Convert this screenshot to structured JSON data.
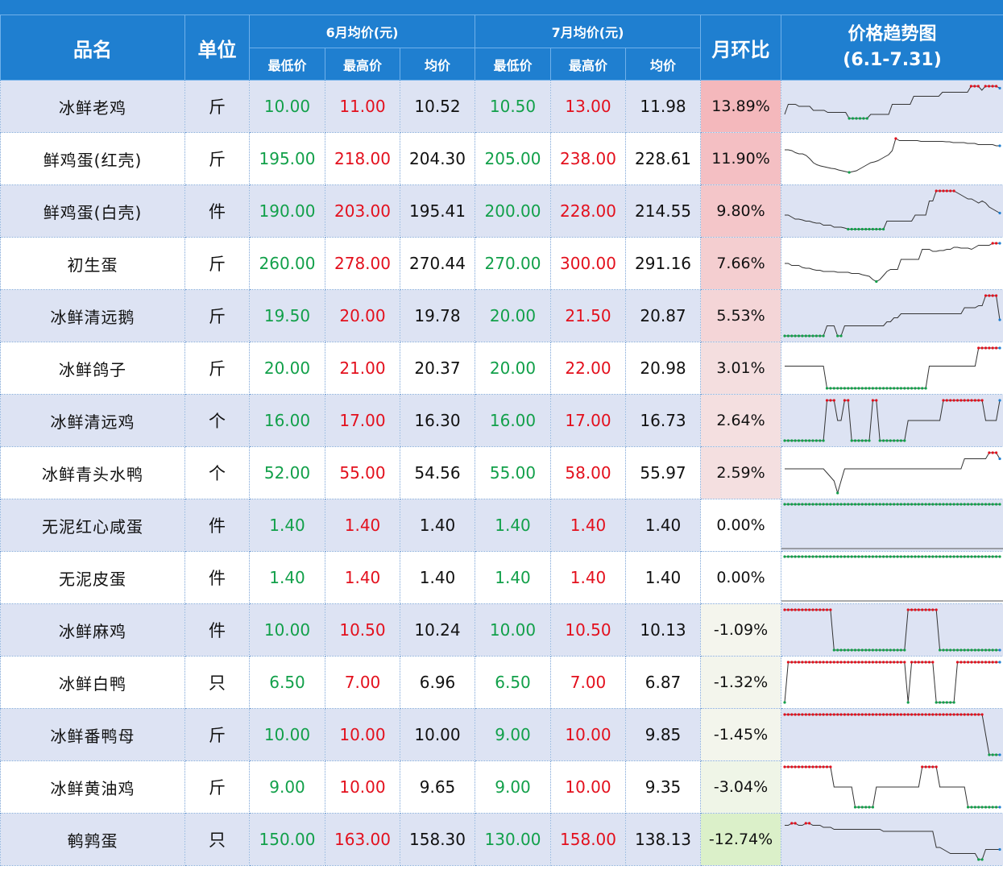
{
  "header": {
    "title": "",
    "col_name": "品名",
    "col_unit": "单位",
    "june_group": "6月均价(元)",
    "july_group": "7月均价(元)",
    "sub_low": "最低价",
    "sub_high": "最高价",
    "sub_avg": "均价",
    "col_change": "月环比",
    "col_trend_line1": "价格趋势图",
    "col_trend_line2": "(6.1-7.31)"
  },
  "colors": {
    "header_bg": "#1f7fd0",
    "low_price": "#12a04a",
    "high_price": "#e3101d",
    "spark_line": "#333333",
    "spark_marker_high": "#e3101d",
    "spark_marker_low": "#12a04a",
    "spark_marker_last": "#1f7fd0"
  },
  "rows": [
    {
      "name": "冰鲜老鸡",
      "unit": "斤",
      "jun_low": "10.00",
      "jun_high": "11.00",
      "jun_avg": "10.52",
      "jul_low": "10.50",
      "jul_high": "13.00",
      "jul_avg": "11.98",
      "change": "13.89%",
      "change_value": 13.89,
      "trend": [
        0.3,
        0.55,
        0.55,
        0.55,
        0.5,
        0.5,
        0.5,
        0.5,
        0.4,
        0.4,
        0.4,
        0.4,
        0.35,
        0.35,
        0.35,
        0.35,
        0.35,
        0.35,
        0.2,
        0.2,
        0.2,
        0.2,
        0.2,
        0.2,
        0.3,
        0.3,
        0.3,
        0.3,
        0.3,
        0.3,
        0.55,
        0.55,
        0.55,
        0.55,
        0.55,
        0.55,
        0.75,
        0.75,
        0.75,
        0.75,
        0.75,
        0.75,
        0.75,
        0.75,
        0.85,
        0.85,
        0.85,
        0.85,
        0.85,
        0.85,
        0.85,
        0.85,
        1.0,
        1.0,
        1.0,
        0.9,
        1.0,
        1.0,
        1.0,
        1.0,
        0.95
      ]
    },
    {
      "name": "鲜鸡蛋(红壳)",
      "unit": "斤",
      "jun_low": "195.00",
      "jun_high": "218.00",
      "jun_avg": "204.30",
      "jul_low": "205.00",
      "jul_high": "238.00",
      "jul_avg": "228.61",
      "change": "11.90%",
      "change_value": 11.9,
      "trend": [
        0.72,
        0.72,
        0.7,
        0.65,
        0.62,
        0.62,
        0.58,
        0.5,
        0.4,
        0.35,
        0.32,
        0.3,
        0.28,
        0.26,
        0.25,
        0.22,
        0.2,
        0.18,
        0.16,
        0.18,
        0.2,
        0.25,
        0.3,
        0.35,
        0.4,
        0.42,
        0.45,
        0.5,
        0.55,
        0.6,
        0.7,
        1.0,
        0.95,
        0.95,
        0.95,
        0.95,
        0.95,
        0.95,
        0.93,
        0.93,
        0.93,
        0.93,
        0.93,
        0.93,
        0.93,
        0.92,
        0.92,
        0.9,
        0.9,
        0.9,
        0.9,
        0.88,
        0.88,
        0.88,
        0.85,
        0.85,
        0.85,
        0.85,
        0.85,
        0.82,
        0.82
      ]
    },
    {
      "name": "鲜鸡蛋(白壳)",
      "unit": "件",
      "jun_low": "190.00",
      "jun_high": "203.00",
      "jun_avg": "195.41",
      "jul_low": "200.00",
      "jul_high": "228.00",
      "jul_avg": "214.55",
      "change": "9.80%",
      "change_value": 9.8,
      "trend": [
        0.4,
        0.4,
        0.35,
        0.3,
        0.3,
        0.28,
        0.25,
        0.25,
        0.22,
        0.2,
        0.2,
        0.15,
        0.15,
        0.15,
        0.1,
        0.1,
        0.1,
        0.08,
        0.05,
        0.05,
        0.05,
        0.05,
        0.05,
        0.05,
        0.05,
        0.05,
        0.05,
        0.05,
        0.05,
        0.25,
        0.25,
        0.25,
        0.25,
        0.25,
        0.25,
        0.25,
        0.25,
        0.4,
        0.4,
        0.4,
        0.4,
        0.75,
        0.75,
        1.0,
        1.0,
        1.0,
        1.0,
        1.0,
        1.0,
        0.95,
        0.9,
        0.85,
        0.8,
        0.8,
        0.75,
        0.7,
        0.75,
        0.7,
        0.6,
        0.55,
        0.5,
        0.45
      ]
    },
    {
      "name": "初生蛋",
      "unit": "斤",
      "jun_low": "260.00",
      "jun_high": "278.00",
      "jun_avg": "270.44",
      "jul_low": "270.00",
      "jul_high": "300.00",
      "jul_avg": "291.16",
      "change": "7.66%",
      "change_value": 7.66,
      "trend": [
        0.5,
        0.5,
        0.45,
        0.45,
        0.45,
        0.4,
        0.38,
        0.38,
        0.35,
        0.33,
        0.33,
        0.3,
        0.3,
        0.3,
        0.3,
        0.28,
        0.28,
        0.28,
        0.28,
        0.25,
        0.25,
        0.25,
        0.22,
        0.2,
        0.18,
        0.1,
        0.05,
        0.1,
        0.2,
        0.3,
        0.35,
        0.35,
        0.35,
        0.6,
        0.6,
        0.6,
        0.6,
        0.6,
        0.6,
        0.85,
        0.85,
        0.85,
        0.8,
        0.8,
        0.82,
        0.82,
        0.85,
        0.85,
        0.9,
        0.9,
        0.88,
        0.88,
        0.88,
        0.85,
        0.9,
        0.95,
        0.95,
        0.95,
        0.95,
        1.0,
        1.0,
        1.0
      ]
    },
    {
      "name": "冰鲜清远鹅",
      "unit": "斤",
      "jun_low": "19.50",
      "jun_high": "20.00",
      "jun_avg": "19.78",
      "jul_low": "20.00",
      "jul_high": "21.50",
      "jul_avg": "20.87",
      "change": "5.53%",
      "change_value": 5.53,
      "trend": [
        0.0,
        0.0,
        0.0,
        0.0,
        0.0,
        0.0,
        0.0,
        0.0,
        0.0,
        0.0,
        0.0,
        0.0,
        0.25,
        0.25,
        0.25,
        0.0,
        0.0,
        0.25,
        0.25,
        0.25,
        0.25,
        0.25,
        0.25,
        0.25,
        0.25,
        0.25,
        0.25,
        0.25,
        0.25,
        0.35,
        0.35,
        0.45,
        0.45,
        0.55,
        0.55,
        0.55,
        0.55,
        0.55,
        0.55,
        0.55,
        0.55,
        0.55,
        0.55,
        0.55,
        0.55,
        0.55,
        0.55,
        0.55,
        0.55,
        0.55,
        0.55,
        0.7,
        0.7,
        0.7,
        0.7,
        0.75,
        0.75,
        1.0,
        1.0,
        1.0,
        1.0,
        0.4
      ]
    },
    {
      "name": "冰鲜鸽子",
      "unit": "斤",
      "jun_low": "20.00",
      "jun_high": "21.00",
      "jun_avg": "20.37",
      "jul_low": "20.00",
      "jul_high": "22.00",
      "jul_avg": "20.98",
      "change": "3.01%",
      "change_value": 3.01,
      "trend": [
        0.55,
        0.55,
        0.55,
        0.55,
        0.55,
        0.55,
        0.55,
        0.55,
        0.55,
        0.55,
        0.55,
        0.55,
        0.0,
        0.0,
        0.0,
        0.0,
        0.0,
        0.0,
        0.0,
        0.0,
        0.0,
        0.0,
        0.0,
        0.0,
        0.0,
        0.0,
        0.0,
        0.0,
        0.0,
        0.0,
        0.0,
        0.0,
        0.0,
        0.0,
        0.0,
        0.0,
        0.0,
        0.0,
        0.0,
        0.0,
        0.0,
        0.55,
        0.55,
        0.55,
        0.55,
        0.55,
        0.55,
        0.55,
        0.55,
        0.55,
        0.55,
        0.55,
        0.55,
        0.55,
        0.55,
        1.0,
        1.0,
        1.0,
        1.0,
        1.0,
        1.0,
        1.0
      ]
    },
    {
      "name": "冰鲜清远鸡",
      "unit": "个",
      "jun_low": "16.00",
      "jun_high": "17.00",
      "jun_avg": "16.30",
      "jul_low": "16.00",
      "jul_high": "17.00",
      "jul_avg": "16.73",
      "change": "2.64%",
      "change_value": 2.64,
      "trend": [
        0.0,
        0.0,
        0.0,
        0.0,
        0.0,
        0.0,
        0.0,
        0.0,
        0.0,
        0.0,
        0.0,
        0.0,
        1.0,
        1.0,
        1.0,
        0.5,
        0.5,
        1.0,
        1.0,
        0.0,
        0.0,
        0.0,
        0.0,
        0.0,
        0.0,
        1.0,
        1.0,
        0.0,
        0.0,
        0.0,
        0.0,
        0.0,
        0.0,
        0.0,
        0.0,
        0.5,
        0.5,
        0.5,
        0.5,
        0.5,
        0.5,
        0.5,
        0.5,
        0.5,
        0.5,
        1.0,
        1.0,
        1.0,
        1.0,
        1.0,
        1.0,
        1.0,
        1.0,
        1.0,
        1.0,
        1.0,
        1.0,
        0.5,
        0.5,
        0.5,
        0.5,
        1.0
      ]
    },
    {
      "name": "冰鲜青头水鸭",
      "unit": "个",
      "jun_low": "52.00",
      "jun_high": "55.00",
      "jun_avg": "54.56",
      "jul_low": "55.00",
      "jul_high": "58.00",
      "jul_avg": "55.97",
      "change": "2.59%",
      "change_value": 2.59,
      "trend": [
        0.6,
        0.6,
        0.6,
        0.6,
        0.6,
        0.6,
        0.6,
        0.6,
        0.6,
        0.6,
        0.6,
        0.6,
        0.5,
        0.4,
        0.3,
        0.0,
        0.3,
        0.6,
        0.6,
        0.6,
        0.6,
        0.6,
        0.6,
        0.6,
        0.6,
        0.6,
        0.6,
        0.6,
        0.6,
        0.6,
        0.6,
        0.6,
        0.6,
        0.6,
        0.6,
        0.6,
        0.6,
        0.6,
        0.6,
        0.6,
        0.6,
        0.6,
        0.6,
        0.6,
        0.6,
        0.6,
        0.6,
        0.6,
        0.6,
        0.6,
        0.6,
        0.85,
        0.85,
        0.85,
        0.85,
        0.85,
        0.85,
        0.85,
        1.0,
        1.0,
        1.0,
        0.85
      ]
    },
    {
      "name": "无泥红心咸蛋",
      "unit": "件",
      "jun_low": "1.40",
      "jun_high": "1.40",
      "jun_avg": "1.40",
      "jul_low": "1.40",
      "jul_high": "1.40",
      "jul_avg": "1.40",
      "change": "0.00%",
      "change_value": 0.0,
      "trend": [
        0.5,
        0.5,
        0.5,
        0.5,
        0.5,
        0.5,
        0.5,
        0.5,
        0.5,
        0.5,
        0.5,
        0.5,
        0.5,
        0.5,
        0.5,
        0.5,
        0.5,
        0.5,
        0.5,
        0.5,
        0.5,
        0.5,
        0.5,
        0.5,
        0.5,
        0.5,
        0.5,
        0.5,
        0.5,
        0.5,
        0.5,
        0.5,
        0.5,
        0.5,
        0.5,
        0.5,
        0.5,
        0.5,
        0.5,
        0.5,
        0.5,
        0.5,
        0.5,
        0.5,
        0.5,
        0.5,
        0.5,
        0.5,
        0.5,
        0.5,
        0.5,
        0.5,
        0.5,
        0.5,
        0.5,
        0.5,
        0.5,
        0.5,
        0.5,
        0.5,
        0.5,
        0.5
      ]
    },
    {
      "name": "无泥皮蛋",
      "unit": "件",
      "jun_low": "1.40",
      "jun_high": "1.40",
      "jun_avg": "1.40",
      "jul_low": "1.40",
      "jul_high": "1.40",
      "jul_avg": "1.40",
      "change": "0.00%",
      "change_value": 0.0,
      "trend": [
        0.5,
        0.5,
        0.5,
        0.5,
        0.5,
        0.5,
        0.5,
        0.5,
        0.5,
        0.5,
        0.5,
        0.5,
        0.5,
        0.5,
        0.5,
        0.5,
        0.5,
        0.5,
        0.5,
        0.5,
        0.5,
        0.5,
        0.5,
        0.5,
        0.5,
        0.5,
        0.5,
        0.5,
        0.5,
        0.5,
        0.5,
        0.5,
        0.5,
        0.5,
        0.5,
        0.5,
        0.5,
        0.5,
        0.5,
        0.5,
        0.5,
        0.5,
        0.5,
        0.5,
        0.5,
        0.5,
        0.5,
        0.5,
        0.5,
        0.5,
        0.5,
        0.5,
        0.5,
        0.5,
        0.5,
        0.5,
        0.5,
        0.5,
        0.5,
        0.5,
        0.5,
        0.5
      ]
    },
    {
      "name": "冰鲜麻鸡",
      "unit": "件",
      "jun_low": "10.00",
      "jun_high": "10.50",
      "jun_avg": "10.24",
      "jul_low": "10.00",
      "jul_high": "10.50",
      "jul_avg": "10.13",
      "change": "-1.09%",
      "change_value": -1.09,
      "trend": [
        1.0,
        1.0,
        1.0,
        1.0,
        1.0,
        1.0,
        1.0,
        1.0,
        1.0,
        1.0,
        1.0,
        1.0,
        1.0,
        1.0,
        0.0,
        0.0,
        0.0,
        0.0,
        0.0,
        0.0,
        0.0,
        0.0,
        0.0,
        0.0,
        0.0,
        0.0,
        0.0,
        0.0,
        0.0,
        0.0,
        0.0,
        0.0,
        0.0,
        0.0,
        0.0,
        1.0,
        1.0,
        1.0,
        1.0,
        1.0,
        1.0,
        1.0,
        1.0,
        1.0,
        0.0,
        0.0,
        0.0,
        0.0,
        0.0,
        0.0,
        0.0,
        0.0,
        0.0,
        0.0,
        0.0,
        0.0,
        0.0,
        0.0,
        0.0,
        0.0,
        0.0,
        0.0
      ]
    },
    {
      "name": "冰鲜白鸭",
      "unit": "只",
      "jun_low": "6.50",
      "jun_high": "7.00",
      "jun_avg": "6.96",
      "jul_low": "6.50",
      "jul_high": "7.00",
      "jul_avg": "6.87",
      "change": "-1.32%",
      "change_value": -1.32,
      "trend": [
        0.0,
        1.0,
        1.0,
        1.0,
        1.0,
        1.0,
        1.0,
        1.0,
        1.0,
        1.0,
        1.0,
        1.0,
        1.0,
        1.0,
        1.0,
        1.0,
        1.0,
        1.0,
        1.0,
        1.0,
        1.0,
        1.0,
        1.0,
        1.0,
        1.0,
        1.0,
        1.0,
        1.0,
        1.0,
        1.0,
        1.0,
        1.0,
        1.0,
        1.0,
        1.0,
        0.0,
        1.0,
        1.0,
        1.0,
        1.0,
        1.0,
        1.0,
        1.0,
        0.0,
        0.0,
        0.0,
        0.0,
        0.0,
        0.0,
        1.0,
        1.0,
        1.0,
        1.0,
        1.0,
        1.0,
        1.0,
        1.0,
        1.0,
        1.0,
        1.0,
        1.0,
        1.0
      ]
    },
    {
      "name": "冰鲜番鸭母",
      "unit": "斤",
      "jun_low": "10.00",
      "jun_high": "10.00",
      "jun_avg": "10.00",
      "jul_low": "9.00",
      "jul_high": "10.00",
      "jul_avg": "9.85",
      "change": "-1.45%",
      "change_value": -1.45,
      "trend": [
        1.0,
        1.0,
        1.0,
        1.0,
        1.0,
        1.0,
        1.0,
        1.0,
        1.0,
        1.0,
        1.0,
        1.0,
        1.0,
        1.0,
        1.0,
        1.0,
        1.0,
        1.0,
        1.0,
        1.0,
        1.0,
        1.0,
        1.0,
        1.0,
        1.0,
        1.0,
        1.0,
        1.0,
        1.0,
        1.0,
        1.0,
        1.0,
        1.0,
        1.0,
        1.0,
        1.0,
        1.0,
        1.0,
        1.0,
        1.0,
        1.0,
        1.0,
        1.0,
        1.0,
        1.0,
        1.0,
        1.0,
        1.0,
        1.0,
        1.0,
        1.0,
        1.0,
        1.0,
        1.0,
        1.0,
        1.0,
        1.0,
        0.5,
        0.0,
        0.0,
        0.0,
        0.0
      ]
    },
    {
      "name": "冰鲜黄油鸡",
      "unit": "斤",
      "jun_low": "9.00",
      "jun_high": "10.00",
      "jun_avg": "9.65",
      "jul_low": "9.00",
      "jul_high": "10.00",
      "jul_avg": "9.35",
      "change": "-3.04%",
      "change_value": -3.04,
      "trend": [
        1.0,
        1.0,
        1.0,
        1.0,
        1.0,
        1.0,
        1.0,
        1.0,
        1.0,
        1.0,
        1.0,
        1.0,
        1.0,
        1.0,
        0.5,
        0.5,
        0.5,
        0.5,
        0.5,
        0.5,
        0.0,
        0.0,
        0.0,
        0.0,
        0.0,
        0.0,
        0.5,
        0.5,
        0.5,
        0.5,
        0.5,
        0.5,
        0.5,
        0.5,
        0.5,
        0.5,
        0.5,
        0.5,
        0.5,
        1.0,
        1.0,
        1.0,
        1.0,
        1.0,
        0.5,
        0.5,
        0.5,
        0.5,
        0.5,
        0.5,
        0.5,
        0.5,
        0.0,
        0.0,
        0.0,
        0.0,
        0.0,
        0.0,
        0.0,
        0.0,
        0.0,
        0.0
      ]
    },
    {
      "name": "鹌鹑蛋",
      "unit": "只",
      "jun_low": "150.00",
      "jun_high": "163.00",
      "jun_avg": "158.30",
      "jul_low": "130.00",
      "jul_high": "158.00",
      "jul_avg": "138.13",
      "change": "-12.74%",
      "change_value": -12.74,
      "trend": [
        0.85,
        0.85,
        0.9,
        0.9,
        0.85,
        0.85,
        0.9,
        0.9,
        0.85,
        0.85,
        0.85,
        0.8,
        0.8,
        0.8,
        0.75,
        0.75,
        0.75,
        0.75,
        0.75,
        0.75,
        0.75,
        0.75,
        0.75,
        0.75,
        0.75,
        0.75,
        0.75,
        0.75,
        0.7,
        0.7,
        0.7,
        0.7,
        0.7,
        0.7,
        0.7,
        0.7,
        0.7,
        0.7,
        0.7,
        0.7,
        0.7,
        0.7,
        0.7,
        0.3,
        0.3,
        0.25,
        0.2,
        0.15,
        0.15,
        0.15,
        0.15,
        0.15,
        0.15,
        0.15,
        0.15,
        0.0,
        0.0,
        0.25,
        0.25,
        0.25,
        0.25,
        0.25
      ]
    }
  ]
}
